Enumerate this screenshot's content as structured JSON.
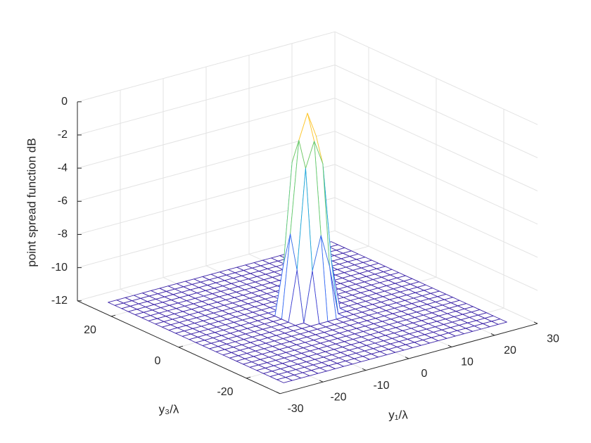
{
  "chart_data": {
    "type": "mesh",
    "xlabel": "y₁/λ",
    "ylabel": "y₃/λ",
    "zlabel": "point spread function dB",
    "xlim": [
      -30,
      30
    ],
    "ylim": [
      -30,
      30
    ],
    "zlim": [
      -12,
      0
    ],
    "xticks": [
      -30,
      -20,
      -10,
      0,
      10,
      20,
      30
    ],
    "yticks": [
      -20,
      0,
      20
    ],
    "zticks": [
      -12,
      -10,
      -8,
      -6,
      -4,
      -2,
      0
    ],
    "grid": true,
    "x": [
      -26,
      -24,
      -22,
      -20,
      -18,
      -16,
      -14,
      -12,
      -10,
      -8,
      -6,
      -4,
      -2,
      0,
      2,
      4,
      6,
      8,
      10,
      12,
      14,
      16,
      18,
      20,
      22,
      24,
      26
    ],
    "y": [
      -26,
      -24,
      -22,
      -20,
      -18,
      -16,
      -14,
      -12,
      -10,
      -8,
      -6,
      -4,
      -2,
      0,
      2,
      4,
      6,
      8,
      10,
      12,
      14,
      16,
      18,
      20,
      22,
      24,
      26
    ],
    "z": [
      [
        -12,
        -12,
        -12,
        -12,
        -12,
        -12,
        -12,
        -12,
        -12,
        -12,
        -12,
        -12,
        -12,
        -12,
        -12,
        -12,
        -12,
        -12,
        -12,
        -12,
        -12,
        -12,
        -12,
        -12,
        -12,
        -12,
        -12
      ],
      [
        -12,
        -12,
        -12,
        -12,
        -12,
        -12,
        -12,
        -12,
        -12,
        -12,
        -12,
        -12,
        -12,
        -12,
        -12,
        -12,
        -12,
        -12,
        -12,
        -12,
        -12,
        -12,
        -12,
        -12,
        -12,
        -12,
        -12
      ],
      [
        -12,
        -12,
        -12,
        -12,
        -12,
        -12,
        -12,
        -12,
        -12,
        -12,
        -12,
        -12,
        -12,
        -12,
        -12,
        -12,
        -12,
        -12,
        -12,
        -12,
        -12,
        -12,
        -12,
        -12,
        -12,
        -12,
        -12
      ],
      [
        -12,
        -12,
        -12,
        -12,
        -12,
        -12,
        -12,
        -12,
        -12,
        -12,
        -12,
        -12,
        -12,
        -12,
        -12,
        -12,
        -12,
        -12,
        -12,
        -12,
        -12,
        -12,
        -12,
        -12,
        -12,
        -12,
        -12
      ],
      [
        -12,
        -12,
        -12,
        -12,
        -12,
        -12,
        -12,
        -12,
        -12,
        -12,
        -12,
        -12,
        -12,
        -12,
        -12,
        -12,
        -12,
        -12,
        -12,
        -12,
        -12,
        -12,
        -12,
        -12,
        -12,
        -12,
        -12
      ],
      [
        -12,
        -12,
        -12,
        -12,
        -12,
        -12,
        -12,
        -12,
        -12,
        -12,
        -12,
        -12,
        -12,
        -12,
        -12,
        -12,
        -12,
        -12,
        -12,
        -12,
        -12,
        -12,
        -12,
        -12,
        -12,
        -12,
        -12
      ],
      [
        -12,
        -12,
        -12,
        -12,
        -12,
        -12,
        -12,
        -12,
        -12,
        -12,
        -12,
        -12,
        -12,
        -12,
        -12,
        -12,
        -12,
        -12,
        -12,
        -12,
        -12,
        -12,
        -12,
        -12,
        -12,
        -12,
        -12
      ],
      [
        -12,
        -12,
        -12,
        -12,
        -12,
        -12,
        -12,
        -12,
        -12,
        -12,
        -12,
        -12,
        -12,
        -12,
        -12,
        -12,
        -12,
        -12,
        -12,
        -12,
        -12,
        -12,
        -12,
        -12,
        -12,
        -12,
        -12
      ],
      [
        -12,
        -12,
        -12,
        -12,
        -12,
        -12,
        -12,
        -12,
        -12,
        -12,
        -12,
        -12,
        -12,
        -12,
        -12,
        -12,
        -12,
        -12,
        -12,
        -12,
        -12,
        -12,
        -12,
        -12,
        -12,
        -12,
        -12
      ],
      [
        -12,
        -12,
        -12,
        -12,
        -12,
        -12,
        -12,
        -12,
        -12,
        -12,
        -12,
        -12,
        -12,
        -12,
        -12,
        -12,
        -12,
        -12,
        -12,
        -12,
        -12,
        -12,
        -12,
        -12,
        -12,
        -12,
        -12
      ],
      [
        -12,
        -12,
        -12,
        -12,
        -12,
        -12,
        -12,
        -12,
        -12,
        -12,
        -12,
        -12,
        -12,
        -12,
        -12,
        -12,
        -12,
        -12,
        -12,
        -12,
        -12,
        -12,
        -12,
        -12,
        -12,
        -12,
        -12
      ],
      [
        -12,
        -12,
        -12,
        -12,
        -12,
        -12,
        -12,
        -12,
        -12,
        -12,
        -12,
        -12,
        -9,
        -7,
        -9,
        -12,
        -12,
        -12,
        -12,
        -12,
        -12,
        -12,
        -12,
        -12,
        -12,
        -12,
        -12
      ],
      [
        -12,
        -12,
        -12,
        -12,
        -12,
        -12,
        -12,
        -12,
        -12,
        -12,
        -12,
        -9,
        -3,
        -1.5,
        -3,
        -9,
        -12,
        -12,
        -12,
        -12,
        -12,
        -12,
        -12,
        -12,
        -12,
        -12,
        -12
      ],
      [
        -12,
        -12,
        -12,
        -12,
        -12,
        -12,
        -12,
        -12,
        -12,
        -12,
        -12,
        -7,
        -1.5,
        0,
        -1.5,
        -7,
        -12,
        -12,
        -12,
        -12,
        -12,
        -12,
        -12,
        -12,
        -12,
        -12,
        -12
      ],
      [
        -12,
        -12,
        -12,
        -12,
        -12,
        -12,
        -12,
        -12,
        -12,
        -12,
        -12,
        -9,
        -3,
        -1.5,
        -3,
        -9,
        -12,
        -12,
        -12,
        -12,
        -12,
        -12,
        -12,
        -12,
        -12,
        -12,
        -12
      ],
      [
        -12,
        -12,
        -12,
        -12,
        -12,
        -12,
        -12,
        -12,
        -12,
        -12,
        -12,
        -12,
        -9,
        -7,
        -9,
        -12,
        -12,
        -12,
        -12,
        -12,
        -12,
        -12,
        -12,
        -12,
        -12,
        -12,
        -12
      ],
      [
        -12,
        -12,
        -12,
        -12,
        -12,
        -12,
        -12,
        -12,
        -12,
        -12,
        -12,
        -12,
        -12,
        -12,
        -12,
        -12,
        -12,
        -12,
        -12,
        -12,
        -12,
        -12,
        -12,
        -12,
        -12,
        -12,
        -12
      ],
      [
        -12,
        -12,
        -12,
        -12,
        -12,
        -12,
        -12,
        -12,
        -12,
        -12,
        -12,
        -12,
        -12,
        -12,
        -12,
        -12,
        -12,
        -12,
        -12,
        -12,
        -12,
        -12,
        -12,
        -12,
        -12,
        -12,
        -12
      ],
      [
        -12,
        -12,
        -12,
        -12,
        -12,
        -12,
        -12,
        -12,
        -12,
        -12,
        -12,
        -12,
        -12,
        -12,
        -12,
        -12,
        -12,
        -12,
        -12,
        -12,
        -12,
        -12,
        -12,
        -12,
        -12,
        -12,
        -12
      ],
      [
        -12,
        -12,
        -12,
        -12,
        -12,
        -12,
        -12,
        -12,
        -12,
        -12,
        -12,
        -12,
        -12,
        -12,
        -12,
        -12,
        -12,
        -12,
        -12,
        -12,
        -12,
        -12,
        -12,
        -12,
        -12,
        -12,
        -12
      ],
      [
        -12,
        -12,
        -12,
        -12,
        -12,
        -12,
        -12,
        -12,
        -12,
        -12,
        -12,
        -12,
        -12,
        -12,
        -12,
        -12,
        -12,
        -12,
        -12,
        -12,
        -12,
        -12,
        -12,
        -12,
        -12,
        -12,
        -12
      ],
      [
        -12,
        -12,
        -12,
        -12,
        -12,
        -12,
        -12,
        -12,
        -12,
        -12,
        -12,
        -12,
        -12,
        -12,
        -12,
        -12,
        -12,
        -12,
        -12,
        -12,
        -12,
        -12,
        -12,
        -12,
        -12,
        -12,
        -12
      ],
      [
        -12,
        -12,
        -12,
        -12,
        -12,
        -12,
        -12,
        -12,
        -12,
        -12,
        -12,
        -12,
        -12,
        -12,
        -12,
        -12,
        -12,
        -12,
        -12,
        -12,
        -12,
        -12,
        -12,
        -12,
        -12,
        -12,
        -12
      ],
      [
        -12,
        -12,
        -12,
        -12,
        -12,
        -12,
        -12,
        -12,
        -12,
        -12,
        -12,
        -12,
        -12,
        -12,
        -12,
        -12,
        -12,
        -12,
        -12,
        -12,
        -12,
        -12,
        -12,
        -12,
        -12,
        -12,
        -12
      ],
      [
        -12,
        -12,
        -12,
        -12,
        -12,
        -12,
        -12,
        -12,
        -12,
        -12,
        -12,
        -12,
        -12,
        -12,
        -12,
        -12,
        -12,
        -12,
        -12,
        -12,
        -12,
        -12,
        -12,
        -12,
        -12,
        -12,
        -12
      ],
      [
        -12,
        -12,
        -12,
        -12,
        -12,
        -12,
        -12,
        -12,
        -12,
        -12,
        -12,
        -12,
        -12,
        -12,
        -12,
        -12,
        -12,
        -12,
        -12,
        -12,
        -12,
        -12,
        -12,
        -12,
        -12,
        -12,
        -12
      ],
      [
        -12,
        -12,
        -12,
        -12,
        -12,
        -12,
        -12,
        -12,
        -12,
        -12,
        -12,
        -12,
        -12,
        -12,
        -12,
        -12,
        -12,
        -12,
        -12,
        -12,
        -12,
        -12,
        -12,
        -12,
        -12,
        -12,
        -12
      ]
    ]
  }
}
